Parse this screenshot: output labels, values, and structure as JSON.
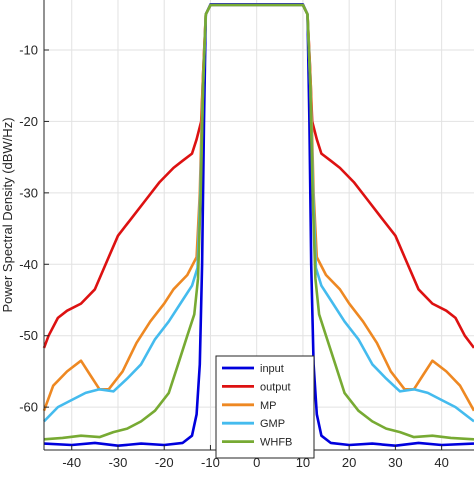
{
  "chart_data": {
    "type": "line",
    "title": "",
    "xlabel": "",
    "ylabel": "Power Spectral Density (dBW/Hz)",
    "xlim": [
      -46,
      47
    ],
    "ylim": [
      -66,
      -3
    ],
    "xticks": [
      -40,
      -30,
      -20,
      -10,
      0,
      10,
      20,
      30,
      40
    ],
    "yticks": [
      -10,
      -20,
      -30,
      -40,
      -50,
      -60
    ],
    "grid": true,
    "legend_position": "bottom-center",
    "series": [
      {
        "name": "input",
        "color": "#0000dd",
        "points": [
          [
            -46,
            -65.1
          ],
          [
            -40,
            -65.3
          ],
          [
            -35,
            -65
          ],
          [
            -30,
            -65.4
          ],
          [
            -25,
            -65.1
          ],
          [
            -20,
            -65.3
          ],
          [
            -16,
            -65
          ],
          [
            -14,
            -64
          ],
          [
            -13,
            -61
          ],
          [
            -12.3,
            -54
          ],
          [
            -11.8,
            -40
          ],
          [
            -11.4,
            -20
          ],
          [
            -11,
            -5
          ],
          [
            -10,
            -3.6
          ],
          [
            0,
            -3.6
          ],
          [
            10,
            -3.6
          ],
          [
            11,
            -5
          ],
          [
            11.4,
            -20
          ],
          [
            11.8,
            -40
          ],
          [
            12.3,
            -54
          ],
          [
            13,
            -61
          ],
          [
            14,
            -64
          ],
          [
            16,
            -65
          ],
          [
            20,
            -65.3
          ],
          [
            25,
            -65.1
          ],
          [
            30,
            -65.4
          ],
          [
            35,
            -65
          ],
          [
            40,
            -65.3
          ],
          [
            47,
            -65.1
          ]
        ]
      },
      {
        "name": "output",
        "color": "#dd1111",
        "points": [
          [
            -46,
            -51.7
          ],
          [
            -45,
            -50
          ],
          [
            -43,
            -47.5
          ],
          [
            -41,
            -46.5
          ],
          [
            -38,
            -45.5
          ],
          [
            -35,
            -43.5
          ],
          [
            -32,
            -39
          ],
          [
            -30,
            -36
          ],
          [
            -27,
            -33.5
          ],
          [
            -24,
            -31
          ],
          [
            -21,
            -28.5
          ],
          [
            -18,
            -26.5
          ],
          [
            -16,
            -25.5
          ],
          [
            -14,
            -24.5
          ],
          [
            -13,
            -22.5
          ],
          [
            -12,
            -20
          ],
          [
            -11.5,
            -12
          ],
          [
            -11,
            -5
          ],
          [
            -10,
            -3.7
          ],
          [
            0,
            -3.7
          ],
          [
            10,
            -3.7
          ],
          [
            11,
            -5
          ],
          [
            11.5,
            -12
          ],
          [
            12,
            -20
          ],
          [
            13,
            -22.5
          ],
          [
            14,
            -24.5
          ],
          [
            16,
            -25.5
          ],
          [
            18,
            -26.5
          ],
          [
            21,
            -28.5
          ],
          [
            24,
            -31
          ],
          [
            27,
            -33.5
          ],
          [
            30,
            -36
          ],
          [
            32,
            -39
          ],
          [
            35,
            -43.5
          ],
          [
            38,
            -45.5
          ],
          [
            41,
            -46.5
          ],
          [
            43,
            -47.5
          ],
          [
            45,
            -50
          ],
          [
            47,
            -51.7
          ]
        ]
      },
      {
        "name": "MP",
        "color": "#ee8822",
        "points": [
          [
            -46,
            -60.5
          ],
          [
            -44,
            -57
          ],
          [
            -41,
            -55
          ],
          [
            -38,
            -53.5
          ],
          [
            -36,
            -55.5
          ],
          [
            -34,
            -57.5
          ],
          [
            -32,
            -57.5
          ],
          [
            -29,
            -55
          ],
          [
            -26,
            -51
          ],
          [
            -23,
            -48
          ],
          [
            -20,
            -45.5
          ],
          [
            -18,
            -43.5
          ],
          [
            -15,
            -41.5
          ],
          [
            -13,
            -39
          ],
          [
            -12.3,
            -30
          ],
          [
            -11.7,
            -15
          ],
          [
            -11,
            -5
          ],
          [
            -10,
            -3.7
          ],
          [
            0,
            -3.7
          ],
          [
            10,
            -3.7
          ],
          [
            11,
            -5
          ],
          [
            11.7,
            -15
          ],
          [
            12.3,
            -30
          ],
          [
            13,
            -39
          ],
          [
            15,
            -41.5
          ],
          [
            18,
            -43.5
          ],
          [
            20,
            -45.5
          ],
          [
            23,
            -48
          ],
          [
            26,
            -51
          ],
          [
            29,
            -55
          ],
          [
            32,
            -57.5
          ],
          [
            34,
            -57.5
          ],
          [
            36,
            -55.5
          ],
          [
            38,
            -53.5
          ],
          [
            41,
            -55
          ],
          [
            44,
            -57
          ],
          [
            47,
            -60.5
          ]
        ]
      },
      {
        "name": "GMP",
        "color": "#44bbee",
        "points": [
          [
            -46,
            -62
          ],
          [
            -43,
            -60
          ],
          [
            -40,
            -59
          ],
          [
            -37,
            -58
          ],
          [
            -34,
            -57.5
          ],
          [
            -31,
            -57.8
          ],
          [
            -28,
            -56
          ],
          [
            -25,
            -54
          ],
          [
            -22,
            -50.5
          ],
          [
            -19,
            -48
          ],
          [
            -16,
            -45
          ],
          [
            -14,
            -43
          ],
          [
            -12.8,
            -40.5
          ],
          [
            -12.2,
            -30
          ],
          [
            -11.6,
            -15
          ],
          [
            -11,
            -5
          ],
          [
            -10,
            -3.7
          ],
          [
            0,
            -3.7
          ],
          [
            10,
            -3.7
          ],
          [
            11,
            -5
          ],
          [
            11.6,
            -15
          ],
          [
            12.2,
            -30
          ],
          [
            12.8,
            -40.5
          ],
          [
            14,
            -43
          ],
          [
            16,
            -45
          ],
          [
            19,
            -48
          ],
          [
            22,
            -50.5
          ],
          [
            25,
            -54
          ],
          [
            28,
            -56
          ],
          [
            31,
            -57.8
          ],
          [
            34,
            -57.5
          ],
          [
            37,
            -58
          ],
          [
            40,
            -59
          ],
          [
            43,
            -60
          ],
          [
            47,
            -62
          ]
        ]
      },
      {
        "name": "WHFB",
        "color": "#77aa33",
        "points": [
          [
            -46,
            -64.5
          ],
          [
            -42,
            -64.3
          ],
          [
            -38,
            -64
          ],
          [
            -34,
            -64.2
          ],
          [
            -31,
            -63.5
          ],
          [
            -28,
            -63
          ],
          [
            -25,
            -62
          ],
          [
            -22,
            -60.5
          ],
          [
            -19,
            -58
          ],
          [
            -17,
            -54
          ],
          [
            -15,
            -50
          ],
          [
            -13.5,
            -47
          ],
          [
            -12.7,
            -42
          ],
          [
            -12.1,
            -30
          ],
          [
            -11.6,
            -15
          ],
          [
            -11,
            -5
          ],
          [
            -10,
            -3.7
          ],
          [
            0,
            -3.7
          ],
          [
            10,
            -3.7
          ],
          [
            11,
            -5
          ],
          [
            11.6,
            -15
          ],
          [
            12.1,
            -30
          ],
          [
            12.7,
            -42
          ],
          [
            13.5,
            -47
          ],
          [
            15,
            -50
          ],
          [
            17,
            -54
          ],
          [
            19,
            -58
          ],
          [
            22,
            -60.5
          ],
          [
            25,
            -62
          ],
          [
            28,
            -63
          ],
          [
            31,
            -63.5
          ],
          [
            34,
            -64.2
          ],
          [
            38,
            -64
          ],
          [
            42,
            -64.3
          ],
          [
            47,
            -64.5
          ]
        ]
      }
    ]
  }
}
